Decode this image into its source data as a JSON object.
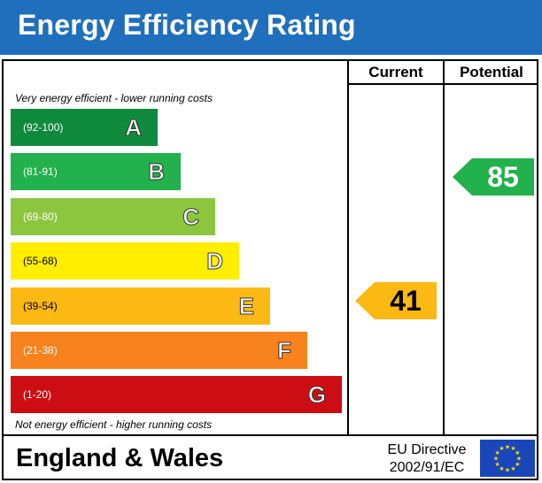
{
  "title": "Energy Efficiency Rating",
  "columns": {
    "current": "Current",
    "potential": "Potential"
  },
  "top_caption": "Very energy efficient - lower running costs",
  "bottom_caption": "Not energy efficient - higher running costs",
  "bands": [
    {
      "letter": "A",
      "range": "(92-100)",
      "color": "#0f8a3c",
      "text_color": "#ffffff"
    },
    {
      "letter": "B",
      "range": "(81-91)",
      "color": "#22b14c",
      "text_color": "#ffffff"
    },
    {
      "letter": "C",
      "range": "(69-80)",
      "color": "#8cc63f",
      "text_color": "#ffffff"
    },
    {
      "letter": "D",
      "range": "(55-68)",
      "color": "#ffee00",
      "text_color": "#000000"
    },
    {
      "letter": "E",
      "range": "(39-54)",
      "color": "#fcb813",
      "text_color": "#000000"
    },
    {
      "letter": "F",
      "range": "(21-38)",
      "color": "#f7821e",
      "text_color": "#ffffff"
    },
    {
      "letter": "G",
      "range": "(1-20)",
      "color": "#cc0e14",
      "text_color": "#ffffff"
    }
  ],
  "chart_data": {
    "type": "bar",
    "categories": [
      "A",
      "B",
      "C",
      "D",
      "E",
      "F",
      "G"
    ],
    "ranges": [
      "(92-100)",
      "(81-91)",
      "(69-80)",
      "(55-68)",
      "(39-54)",
      "(21-38)",
      "(1-20)"
    ],
    "current": {
      "value": "41",
      "band": "E",
      "color": "#fcb813"
    },
    "potential": {
      "value": "85",
      "band": "B",
      "color": "#22b14c"
    }
  },
  "footer": {
    "region": "England & Wales",
    "directive_line1": "EU Directive",
    "directive_line2": "2002/91/EC",
    "flag_icon": "eu-flag-icon"
  }
}
